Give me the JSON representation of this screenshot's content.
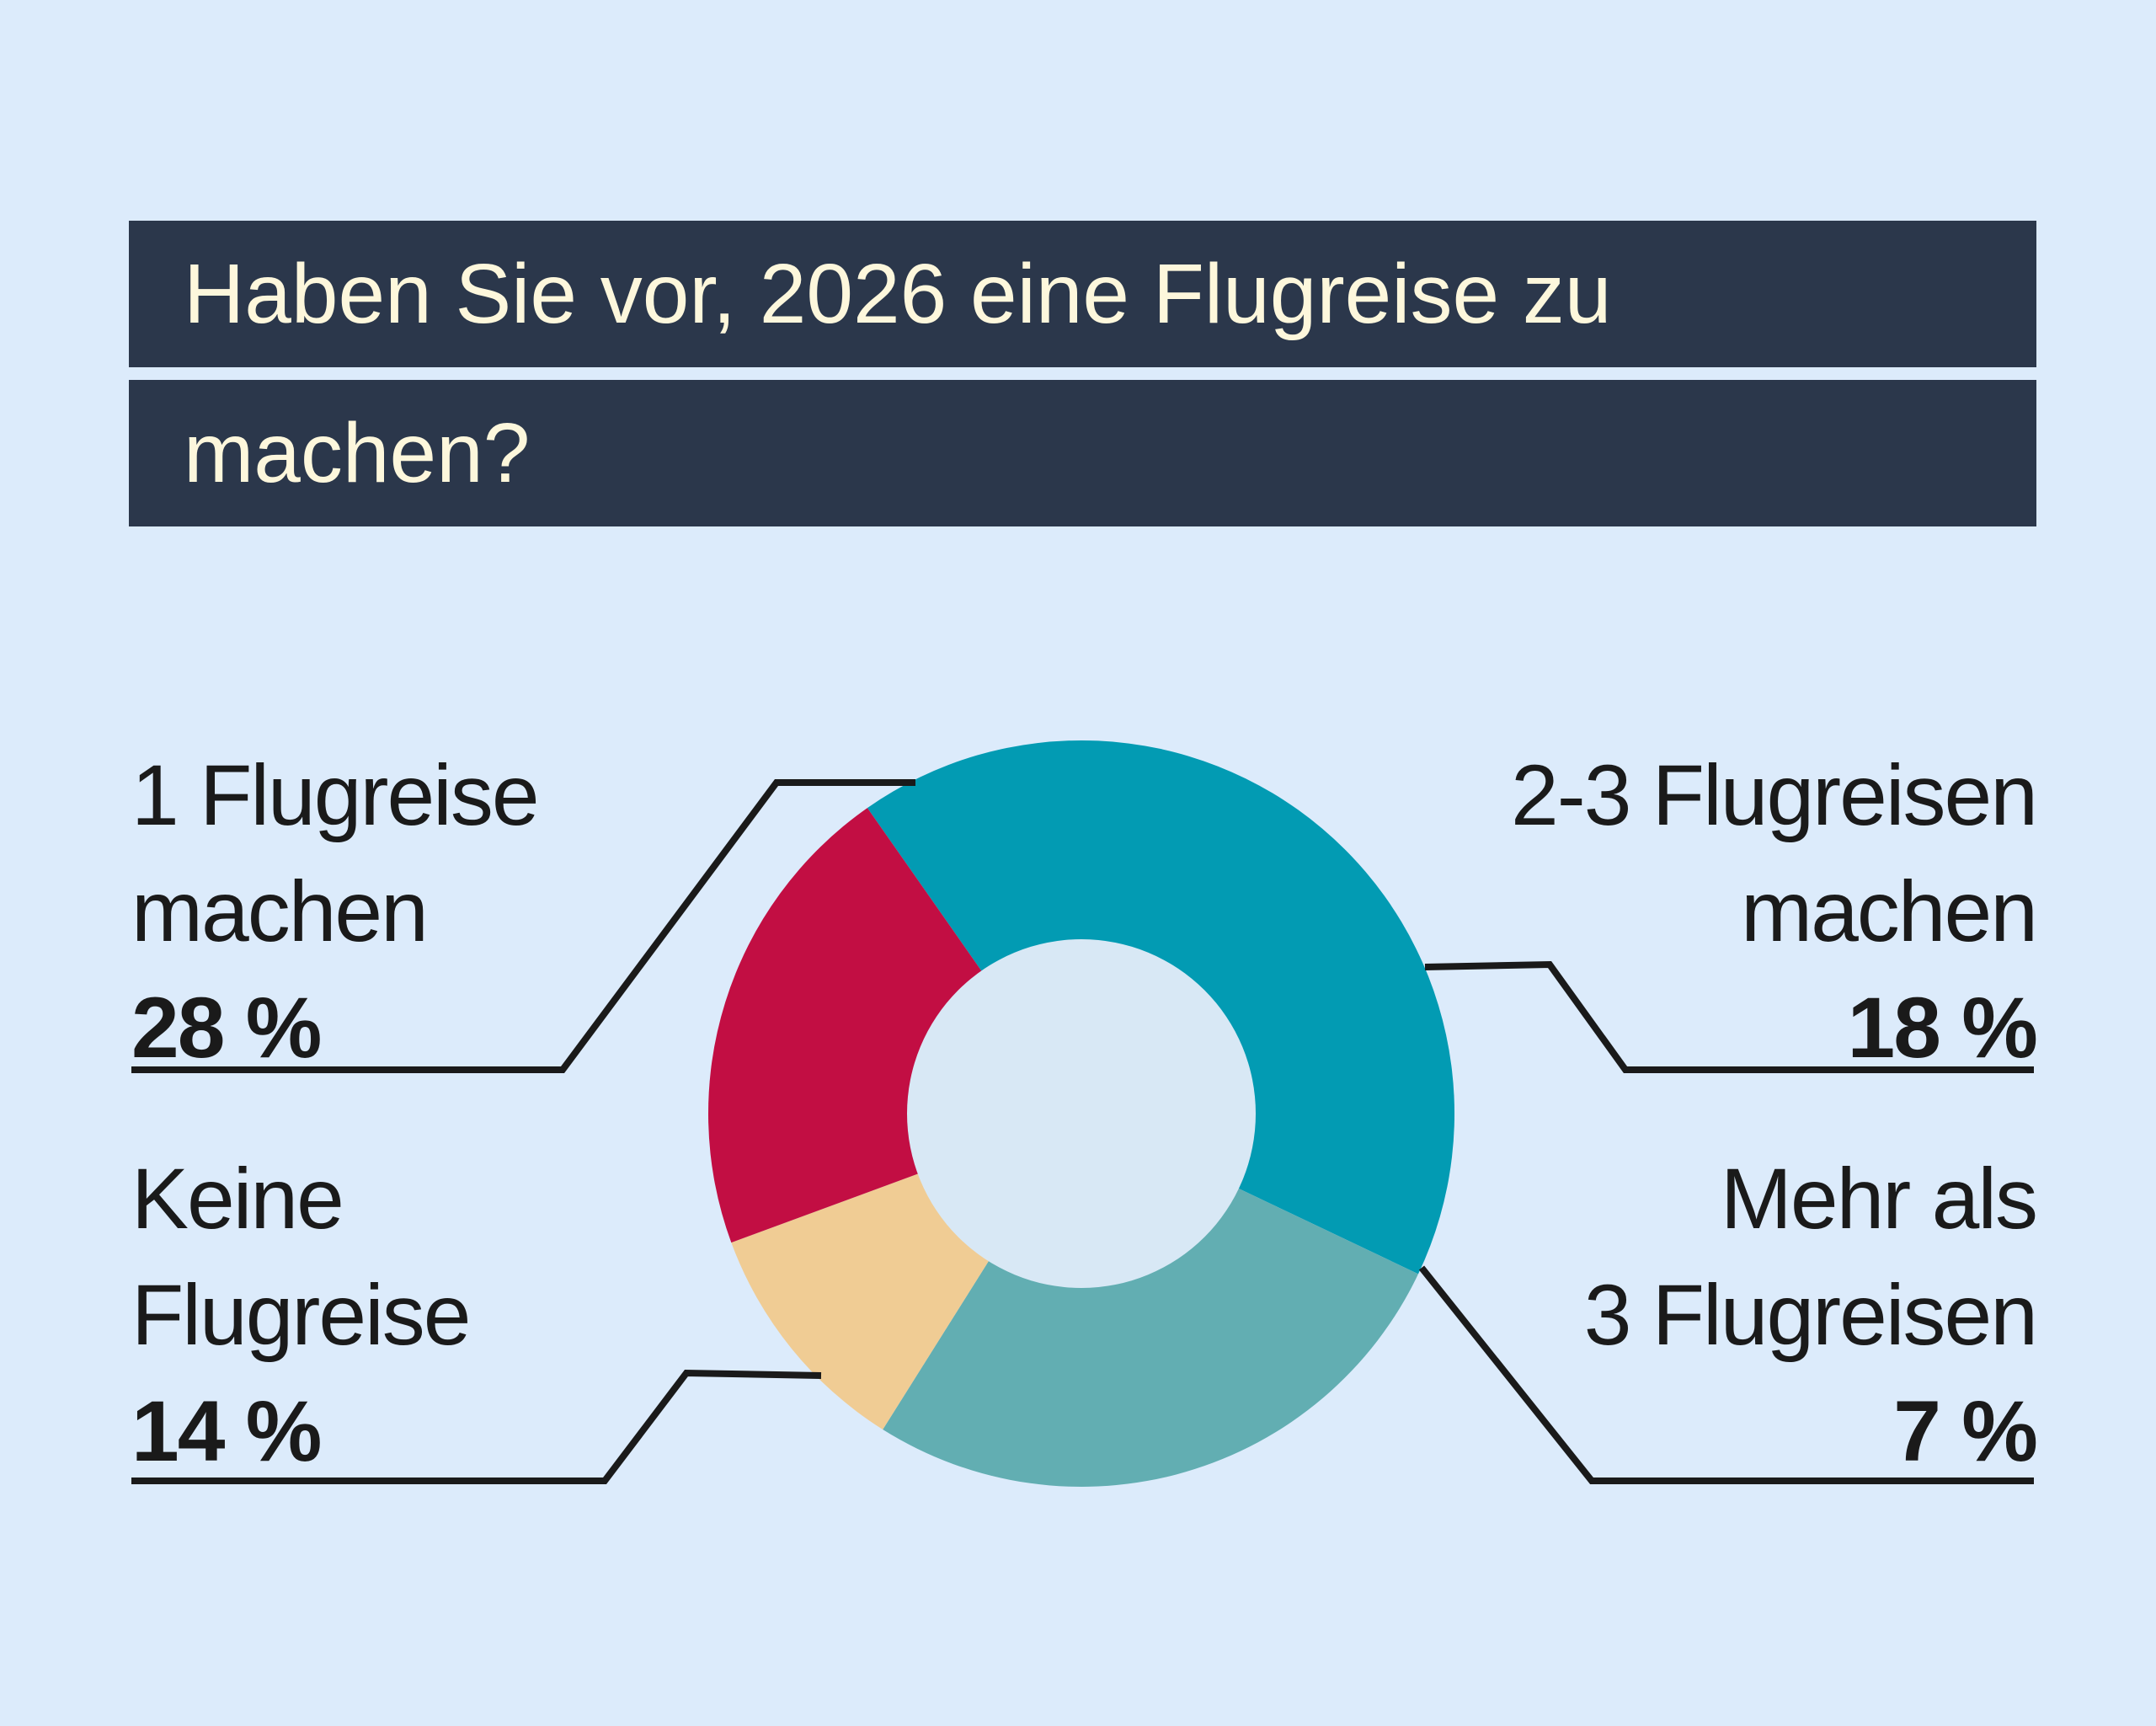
{
  "title_lines": [
    "Haben Sie vor, 2026 eine Flugreise zu",
    "machen?"
  ],
  "labels": {
    "one": {
      "line1": "1 Flugreise",
      "line2": "machen",
      "pct": "28 %"
    },
    "two_three": {
      "line1": "2-3 Flugreisen",
      "line2": "machen",
      "pct": "18 %"
    },
    "none": {
      "line1": "Keine",
      "line2": "Flugreise",
      "pct": "14 %"
    },
    "more": {
      "line1": "Mehr als",
      "line2": "3 Flugreisen",
      "pct": "7 %"
    }
  },
  "chart_data": {
    "type": "pie",
    "title": "Haben Sie vor, 2026 eine Flugreise zu machen?",
    "donut": true,
    "slices": [
      {
        "label": "1 Flugreise machen",
        "value": 28,
        "color": "#029bb3"
      },
      {
        "label": "2-3 Flugreisen machen",
        "value": 18,
        "color": "#62aeb2"
      },
      {
        "label": "Mehr als 3 Flugreisen",
        "value": 7,
        "color": "#f0cc94"
      },
      {
        "label": "Keine Flugreise",
        "value": 14,
        "color": "#c20e43"
      }
    ],
    "legend": "none"
  },
  "colors": {
    "background": "#dcebfb",
    "title_bar": "#2b374b",
    "title_text": "#fdf7dc",
    "donut_hole": "#d8e8f5",
    "leader_lines": "#1a1a1a"
  }
}
